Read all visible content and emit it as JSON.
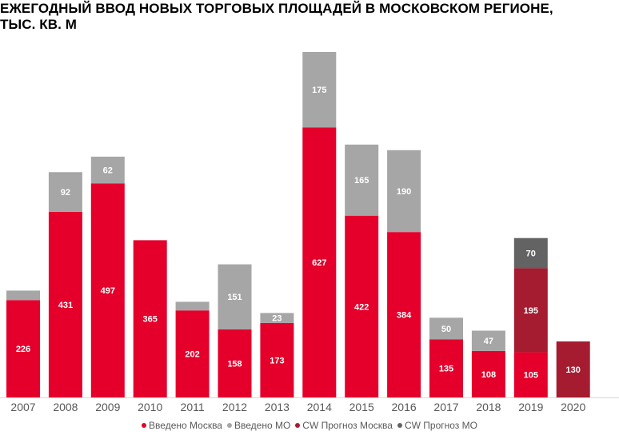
{
  "chart_data": {
    "type": "bar",
    "stacked": true,
    "title_lines": [
      "ЕЖЕГОДНЫЙ ВВОД НОВЫХ ТОРГОВЫХ ПЛОЩАДЕЙ В МОСКОВСКОМ РЕГИОНЕ,",
      "ТЫС. КВ. М"
    ],
    "categories": [
      "2007",
      "2008",
      "2009",
      "2010",
      "2011",
      "2012",
      "2013",
      "2014",
      "2015",
      "2016",
      "2017",
      "2018",
      "2019",
      "2020"
    ],
    "series": [
      {
        "name": "Введено Москва",
        "color": "#e4002b",
        "values": [
          226,
          431,
          497,
          365,
          202,
          158,
          173,
          627,
          422,
          384,
          135,
          108,
          105,
          null
        ],
        "labels": [
          "226",
          "431",
          "497",
          "365",
          "202",
          "158",
          "173",
          "627",
          "422",
          "384",
          "135",
          "108",
          "105",
          null
        ]
      },
      {
        "name": "Введено МО",
        "color": "#a6a6a6",
        "values": [
          22,
          92,
          62,
          0,
          20,
          151,
          23,
          175,
          165,
          190,
          50,
          47,
          null,
          null
        ],
        "labels": [
          null,
          "92",
          "62",
          null,
          null,
          "151",
          "23",
          "175",
          "165",
          "190",
          "50",
          "47",
          null,
          null
        ]
      },
      {
        "name": "CW Прогноз Москва",
        "color": "#a51c30",
        "values": [
          null,
          null,
          null,
          null,
          null,
          null,
          null,
          null,
          null,
          null,
          null,
          null,
          195,
          130
        ],
        "labels": [
          null,
          null,
          null,
          null,
          null,
          null,
          null,
          null,
          null,
          null,
          null,
          null,
          "195",
          "130"
        ]
      },
      {
        "name": "CW Прогноз МО",
        "color": "#636363",
        "values": [
          null,
          null,
          null,
          null,
          null,
          null,
          null,
          null,
          null,
          null,
          null,
          null,
          70,
          null
        ],
        "labels": [
          null,
          null,
          null,
          null,
          null,
          null,
          null,
          null,
          null,
          null,
          null,
          null,
          "70",
          null
        ]
      }
    ],
    "xlabel": "",
    "ylabel": "",
    "ylim": [
      0,
      802
    ],
    "grid": false,
    "legend_position": "bottom"
  }
}
